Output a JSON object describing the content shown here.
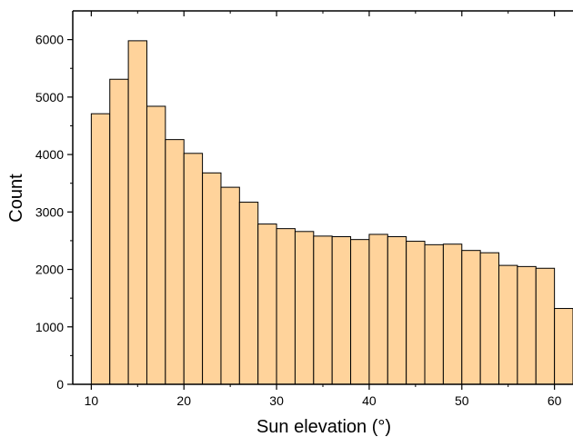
{
  "chart_data": {
    "type": "bar",
    "histogram": true,
    "title": "",
    "xlabel": "Sun elevation (°)",
    "ylabel": "Count",
    "xlim": [
      8,
      62
    ],
    "ylim": [
      0,
      6500
    ],
    "xticks": [
      10,
      20,
      30,
      40,
      50,
      60
    ],
    "yticks": [
      0,
      1000,
      2000,
      3000,
      4000,
      5000,
      6000
    ],
    "bin_width": 2,
    "bins": [
      {
        "start": 10,
        "end": 12,
        "value": 4710
      },
      {
        "start": 12,
        "end": 14,
        "value": 5310
      },
      {
        "start": 14,
        "end": 16,
        "value": 5980
      },
      {
        "start": 16,
        "end": 18,
        "value": 4840
      },
      {
        "start": 18,
        "end": 20,
        "value": 4260
      },
      {
        "start": 20,
        "end": 22,
        "value": 4020
      },
      {
        "start": 22,
        "end": 24,
        "value": 3680
      },
      {
        "start": 24,
        "end": 26,
        "value": 3430
      },
      {
        "start": 26,
        "end": 28,
        "value": 3170
      },
      {
        "start": 28,
        "end": 30,
        "value": 2790
      },
      {
        "start": 30,
        "end": 32,
        "value": 2710
      },
      {
        "start": 32,
        "end": 34,
        "value": 2660
      },
      {
        "start": 34,
        "end": 36,
        "value": 2580
      },
      {
        "start": 36,
        "end": 38,
        "value": 2570
      },
      {
        "start": 38,
        "end": 40,
        "value": 2520
      },
      {
        "start": 40,
        "end": 42,
        "value": 2610
      },
      {
        "start": 42,
        "end": 44,
        "value": 2570
      },
      {
        "start": 44,
        "end": 46,
        "value": 2490
      },
      {
        "start": 46,
        "end": 48,
        "value": 2430
      },
      {
        "start": 48,
        "end": 50,
        "value": 2440
      },
      {
        "start": 50,
        "end": 52,
        "value": 2330
      },
      {
        "start": 52,
        "end": 54,
        "value": 2290
      },
      {
        "start": 54,
        "end": 56,
        "value": 2070
      },
      {
        "start": 56,
        "end": 58,
        "value": 2050
      },
      {
        "start": 58,
        "end": 60,
        "value": 2020
      },
      {
        "start": 60,
        "end": 62,
        "value": 1320
      }
    ],
    "bar_color": "#ffd39b",
    "bar_edge_color": "#000000",
    "grid": false,
    "legend": "none"
  }
}
